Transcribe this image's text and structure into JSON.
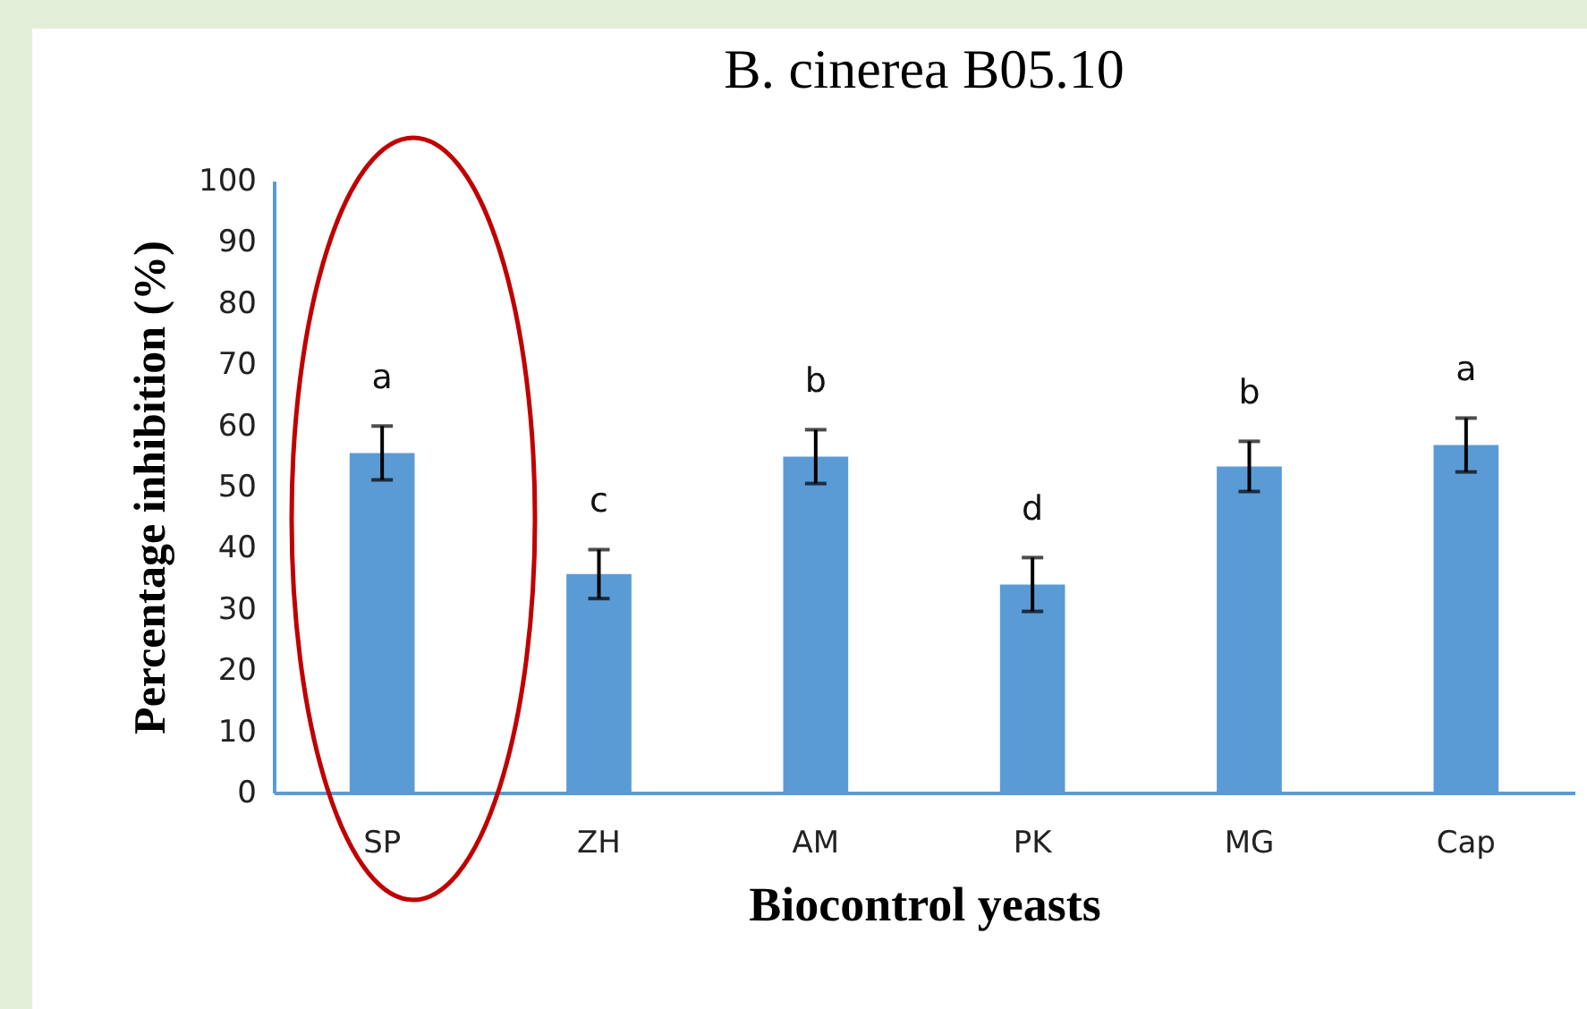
{
  "chart_data": {
    "type": "bar",
    "title": "B. cinerea B05.10",
    "xlabel": "Biocontrol yeasts",
    "ylabel": "Percentage inhibition (%)",
    "categories": [
      "SP",
      "ZH",
      "AM",
      "PK",
      "MG",
      "Cap"
    ],
    "values": [
      55.5,
      35.7,
      54.9,
      34.0,
      53.3,
      56.8
    ],
    "errors": [
      4.4,
      4.0,
      4.4,
      4.4,
      4.1,
      4.4
    ],
    "color": "#5b9bd5",
    "ylim": [
      0,
      100
    ],
    "yticks": [
      0,
      10,
      20,
      30,
      40,
      50,
      60,
      70,
      80,
      90,
      100
    ],
    "annotations": [
      "a",
      "c",
      "b",
      "d",
      "b",
      "a"
    ]
  }
}
